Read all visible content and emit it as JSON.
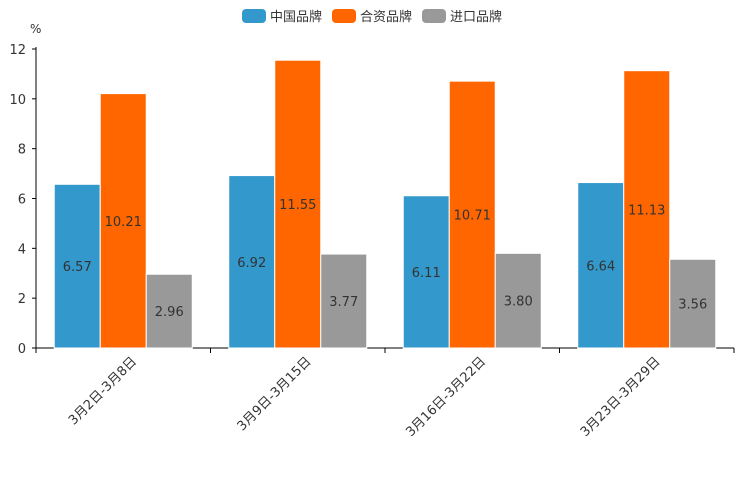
{
  "chart_data": {
    "type": "bar",
    "unit_label": "%",
    "categories": [
      "3月2日-3月8日",
      "3月9日-3月15日",
      "3月16日-3月22日",
      "3月23日-3月29日"
    ],
    "series": [
      {
        "name": "中国品牌",
        "color": "#3399cc",
        "values": [
          6.57,
          6.92,
          6.11,
          6.64
        ],
        "labels": [
          "6.57",
          "6.92",
          "6.11",
          "6.64"
        ]
      },
      {
        "name": "合资品牌",
        "color": "#ff6600",
        "values": [
          10.21,
          11.55,
          10.71,
          11.13
        ],
        "labels": [
          "10.21",
          "11.55",
          "10.71",
          "11.13"
        ]
      },
      {
        "name": "进口品牌",
        "color": "#999999",
        "values": [
          2.96,
          3.77,
          3.8,
          3.56
        ],
        "labels": [
          "2.96",
          "3.77",
          "3.80",
          "3.56"
        ]
      }
    ],
    "ylim": [
      0,
      12
    ],
    "yticks": [
      "0",
      "2",
      "4",
      "6",
      "8",
      "10",
      "12"
    ],
    "legend_position": "top-center"
  }
}
